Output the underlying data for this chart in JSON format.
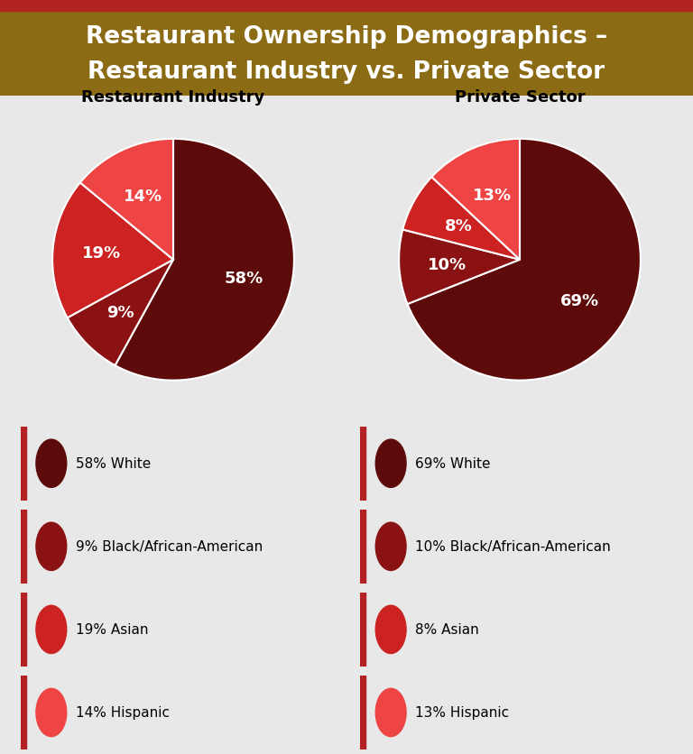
{
  "title_line1": "Restaurant Ownership Demographics –",
  "title_line2": "Restaurant Industry vs. Private Sector",
  "title_bg_color": "#8B6B14",
  "title_top_stripe_color": "#B22222",
  "bg_color": "#E8E8E8",
  "restaurant_industry": {
    "label": "Restaurant Industry",
    "values": [
      58,
      9,
      19,
      14
    ],
    "colors": [
      "#5C0A0A",
      "#8B1212",
      "#CC2222",
      "#EE4444"
    ],
    "labels": [
      "58%",
      "9%",
      "19%",
      "14%"
    ],
    "label_r": [
      0.6,
      0.62,
      0.6,
      0.58
    ]
  },
  "private_sector": {
    "label": "Private Sector",
    "values": [
      69,
      10,
      8,
      13
    ],
    "colors": [
      "#5C0A0A",
      "#8B1212",
      "#CC2222",
      "#EE4444"
    ],
    "labels": [
      "69%",
      "10%",
      "8%",
      "13%"
    ],
    "label_r": [
      0.6,
      0.6,
      0.58,
      0.58
    ]
  },
  "legend_items": [
    {
      "pct_ri": "58%",
      "pct_ps": "69%",
      "label": "White",
      "color_ri": "#5C0A0A",
      "color_ps": "#5C0A0A"
    },
    {
      "pct_ri": "9%",
      "pct_ps": "10%",
      "label": "Black/African-American",
      "color_ri": "#8B1212",
      "color_ps": "#8B1212"
    },
    {
      "pct_ri": "19%",
      "pct_ps": "8%",
      "label": "Asian",
      "color_ri": "#CC2222",
      "color_ps": "#CC2222"
    },
    {
      "pct_ri": "14%",
      "pct_ps": "13%",
      "label": "Hispanic",
      "color_ri": "#EE4444",
      "color_ps": "#EE4444"
    }
  ],
  "legend_bar_color": "#B22222",
  "legend_text_fontsize": 11,
  "pie_label_fontsize": 13,
  "subtitle_fontsize": 13,
  "title_fontsize": 19
}
